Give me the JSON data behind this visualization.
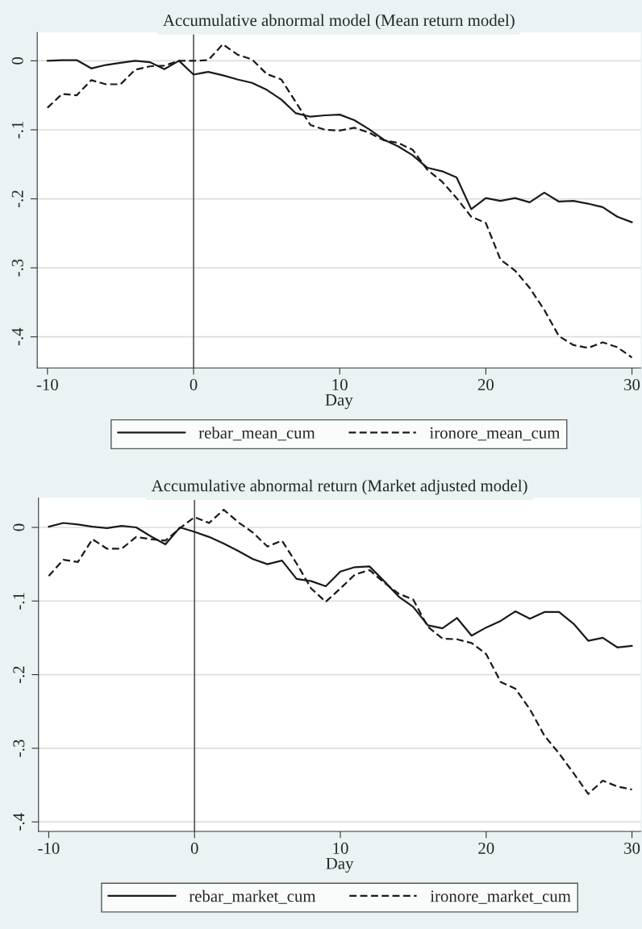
{
  "chart_data": [
    {
      "type": "line",
      "title": "Accumulative abnormal model (Mean return model)",
      "xlabel": "Day",
      "x": [
        -10,
        -9,
        -8,
        -7,
        -6,
        -5,
        -4,
        -3,
        -2,
        -1,
        0,
        1,
        2,
        3,
        4,
        5,
        6,
        7,
        8,
        9,
        10,
        11,
        12,
        13,
        14,
        15,
        16,
        17,
        18,
        19,
        20,
        21,
        22,
        23,
        24,
        25,
        26,
        27,
        28,
        29,
        30
      ],
      "series": [
        {
          "name": "rebar_mean_cum",
          "color": "#1a1a1a",
          "line_style": "solid",
          "values": [
            0,
            0.001,
            0.001,
            -0.011,
            -0.006,
            -0.003,
            0,
            -0.002,
            -0.012,
            0,
            -0.02,
            -0.016,
            -0.021,
            -0.027,
            -0.032,
            -0.042,
            -0.056,
            -0.076,
            -0.081,
            -0.079,
            -0.078,
            -0.086,
            -0.099,
            -0.114,
            -0.124,
            -0.137,
            -0.155,
            -0.16,
            -0.169,
            -0.215,
            -0.199,
            -0.203,
            -0.199,
            -0.205,
            -0.191,
            -0.204,
            -0.203,
            -0.207,
            -0.212,
            -0.226,
            -0.234
          ]
        },
        {
          "name": "ironore_mean_cum",
          "color": "#1a1a1a",
          "line_style": "dashed",
          "values": [
            -0.068,
            -0.048,
            -0.05,
            -0.028,
            -0.034,
            -0.034,
            -0.013,
            -0.008,
            -0.007,
            0,
            0,
            0.001,
            0.024,
            0.009,
            0.002,
            -0.019,
            -0.027,
            -0.06,
            -0.093,
            -0.1,
            -0.101,
            -0.097,
            -0.104,
            -0.115,
            -0.119,
            -0.129,
            -0.158,
            -0.175,
            -0.199,
            -0.226,
            -0.235,
            -0.288,
            -0.304,
            -0.329,
            -0.361,
            -0.399,
            -0.412,
            -0.416,
            -0.408,
            -0.415,
            -0.43
          ]
        }
      ],
      "xlim": [
        -10.7,
        30.6
      ],
      "ylim": [
        -0.445,
        0.041
      ],
      "xticks": [
        -10,
        0,
        10,
        20,
        30
      ],
      "yticks": [
        {
          "value": 0,
          "label": "0"
        },
        {
          "value": -0.1,
          "label": "-.1"
        },
        {
          "value": -0.2,
          "label": "-.2"
        },
        {
          "value": -0.3,
          "label": "-.3"
        },
        {
          "value": -0.4,
          "label": "-.4"
        }
      ],
      "ref_lines": [
        {
          "axis": "x",
          "value": 0,
          "color": "#555555"
        }
      ],
      "grid": "y",
      "legend": "bottom",
      "marker": "none"
    },
    {
      "type": "line",
      "title": "Accumulative abnormal return (Market adjusted model)",
      "xlabel": "Day",
      "x": [
        -10,
        -9,
        -8,
        -7,
        -6,
        -5,
        -4,
        -3,
        -2,
        -1,
        0,
        1,
        2,
        3,
        4,
        5,
        6,
        7,
        8,
        9,
        10,
        11,
        12,
        13,
        14,
        15,
        16,
        17,
        18,
        19,
        20,
        21,
        22,
        23,
        24,
        25,
        26,
        27,
        28,
        29,
        30
      ],
      "series": [
        {
          "name": "rebar_market_cum",
          "color": "#1a1a1a",
          "line_style": "solid",
          "values": [
            0.001,
            0.006,
            0.004,
            0.001,
            -0.001,
            0.002,
            0,
            -0.012,
            -0.023,
            0,
            -0.006,
            -0.013,
            -0.022,
            -0.032,
            -0.043,
            -0.05,
            -0.045,
            -0.07,
            -0.073,
            -0.08,
            -0.06,
            -0.054,
            -0.053,
            -0.073,
            -0.094,
            -0.108,
            -0.133,
            -0.137,
            -0.123,
            -0.147,
            -0.136,
            -0.127,
            -0.114,
            -0.124,
            -0.115,
            -0.115,
            -0.131,
            -0.154,
            -0.15,
            -0.163,
            -0.161
          ]
        },
        {
          "name": "ironore_market_cum",
          "color": "#1a1a1a",
          "line_style": "dashed",
          "values": [
            -0.066,
            -0.044,
            -0.047,
            -0.016,
            -0.029,
            -0.029,
            -0.013,
            -0.016,
            -0.018,
            -0.001,
            0.014,
            0.006,
            0.024,
            0.007,
            -0.007,
            -0.026,
            -0.018,
            -0.049,
            -0.083,
            -0.101,
            -0.083,
            -0.064,
            -0.058,
            -0.075,
            -0.09,
            -0.098,
            -0.135,
            -0.151,
            -0.152,
            -0.157,
            -0.172,
            -0.21,
            -0.219,
            -0.247,
            -0.283,
            -0.307,
            -0.334,
            -0.362,
            -0.344,
            -0.352,
            -0.356
          ]
        }
      ],
      "xlim": [
        -10.7,
        30.6
      ],
      "ylim": [
        -0.413,
        0.04
      ],
      "xticks": [
        -10,
        0,
        10,
        20,
        30
      ],
      "yticks": [
        {
          "value": 0,
          "label": "0"
        },
        {
          "value": -0.1,
          "label": "-.1"
        },
        {
          "value": -0.2,
          "label": "-.2"
        },
        {
          "value": -0.3,
          "label": "-.3"
        },
        {
          "value": -0.4,
          "label": "-.4"
        }
      ],
      "ref_lines": [
        {
          "axis": "x",
          "value": 0,
          "color": "#555555"
        }
      ],
      "grid": "y",
      "legend": "bottom",
      "marker": "none"
    }
  ]
}
